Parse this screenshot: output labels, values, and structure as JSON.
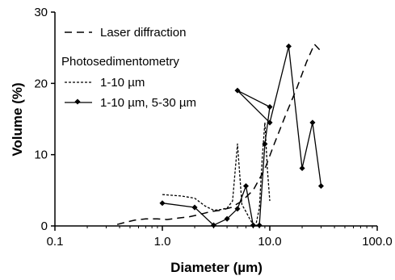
{
  "chart_data": {
    "type": "line",
    "xscale": "log",
    "xlim": [
      0.1,
      100.0
    ],
    "ylim": [
      0,
      30
    ],
    "xticks": [
      "0.1",
      "1.0",
      "10.0",
      "100.0"
    ],
    "yticks": [
      "0",
      "10",
      "20",
      "30"
    ],
    "xlabel": "Diameter (µm)",
    "ylabel": "Volume (%)",
    "legend": {
      "placement": "top-left",
      "group_title": "Photosedimentometry"
    },
    "series": [
      {
        "name": "Laser diffraction",
        "style": "long-dash",
        "x": [
          0.38,
          0.45,
          0.55,
          0.7,
          0.9,
          1.1,
          1.4,
          1.8,
          2.2,
          2.8,
          3.5,
          4.4,
          5.5,
          7.0,
          9.0,
          11.0,
          14.0,
          18.0,
          22.0,
          26.0,
          30.0
        ],
        "y": [
          0.2,
          0.5,
          0.8,
          1.0,
          1.0,
          0.9,
          1.1,
          1.3,
          1.6,
          2.0,
          2.2,
          2.6,
          3.5,
          5.0,
          8.0,
          11.5,
          15.5,
          19.5,
          23.0,
          25.5,
          24.5
        ]
      },
      {
        "name": "1-10 µm",
        "style": "short-dash",
        "x": [
          1.0,
          1.5,
          2.0,
          2.5,
          3.0,
          3.5,
          4.0,
          4.5,
          5.0,
          5.5,
          6.0,
          6.5,
          7.0,
          7.5,
          8.0,
          8.5,
          9.0,
          9.5,
          10.0
        ],
        "y": [
          4.4,
          4.2,
          3.9,
          2.8,
          2.2,
          2.3,
          2.5,
          3.5,
          11.5,
          3.0,
          2.0,
          1.0,
          0.2,
          0.5,
          2.5,
          9.5,
          14.5,
          8.0,
          3.5
        ]
      },
      {
        "name": "1-10 µm, 5-30 µm",
        "style": "solid-marker",
        "x": [
          1.0,
          2.0,
          3.0,
          4.0,
          5.0,
          6.0,
          7.0,
          8.0,
          9.0,
          10.0,
          5.0,
          10.0,
          15.0,
          20.0,
          25.0,
          30.0
        ],
        "y": [
          3.2,
          2.6,
          0.1,
          1.0,
          2.4,
          5.6,
          0.1,
          0.1,
          11.5,
          16.7,
          19.0,
          14.5,
          25.2,
          8.1,
          14.5,
          5.6
        ]
      }
    ]
  }
}
